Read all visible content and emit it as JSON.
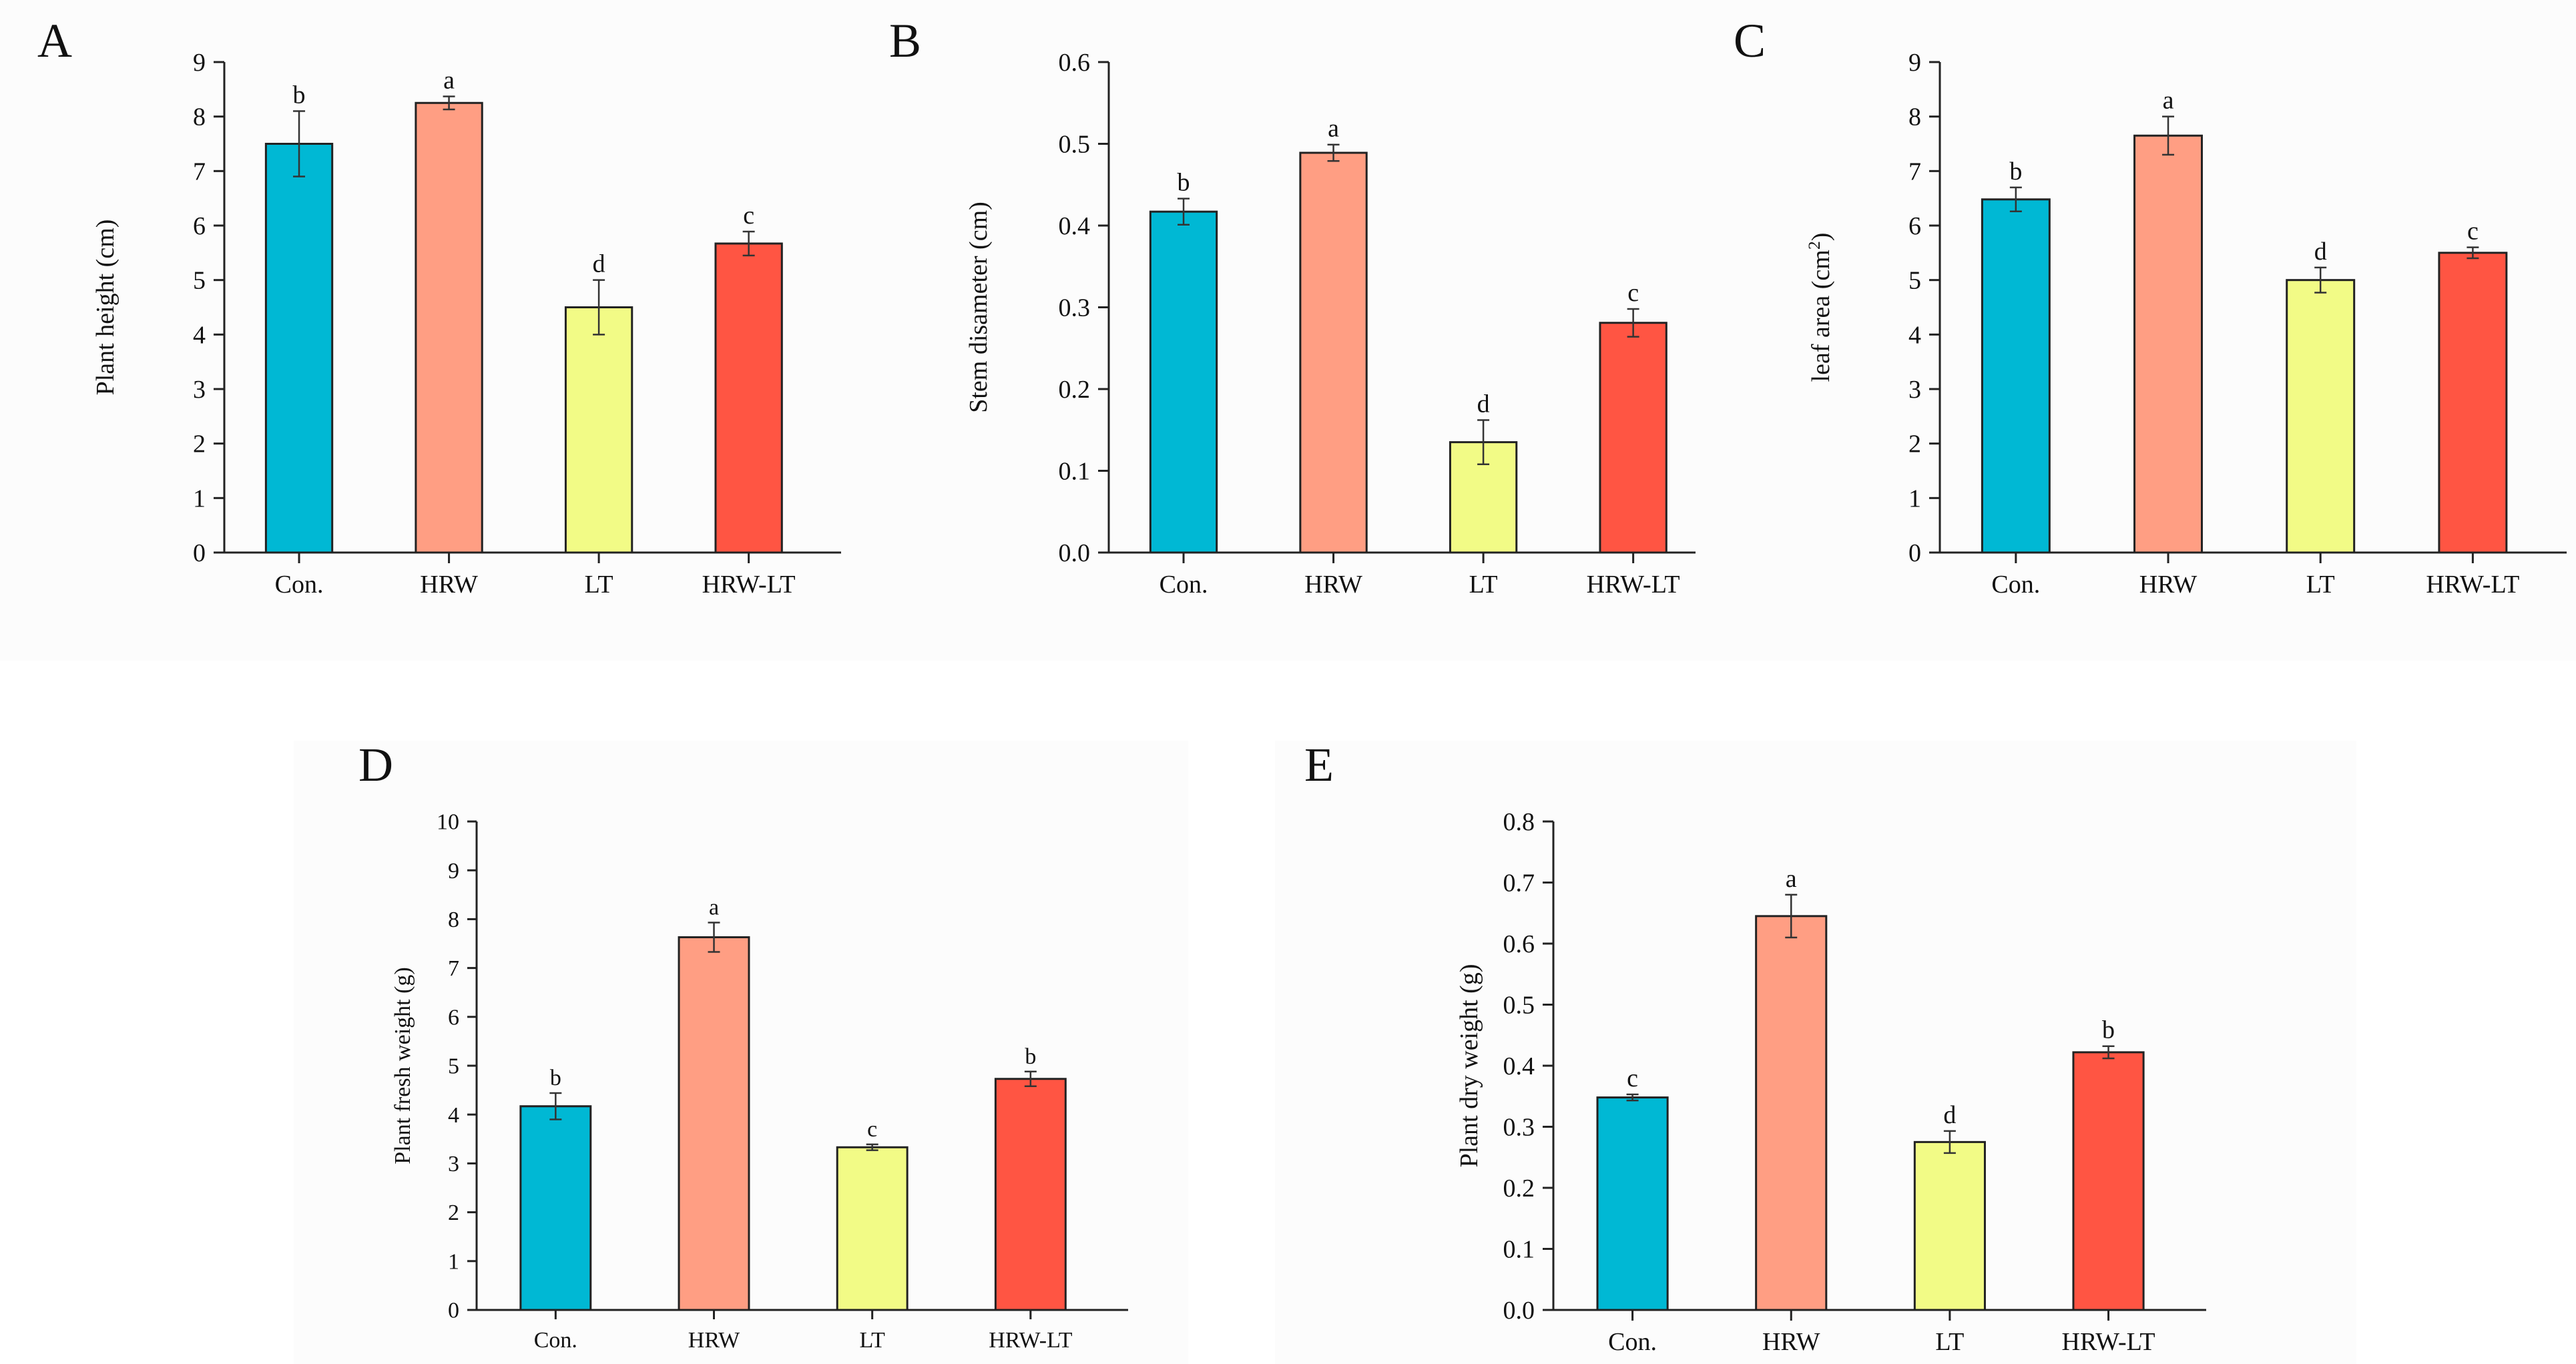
{
  "colors": {
    "Con.": "#00b8d4",
    "HRW": "#ff9e83",
    "LT": "#f2fb86",
    "HRW-LT": "#ff5543",
    "axis": "#222222",
    "bar_stroke": "#222222"
  },
  "chart_data": [
    {
      "panel": "A",
      "type": "bar",
      "ylabel": "Plant height (cm)",
      "ylabel_sup": "",
      "ylabel_suffix": "",
      "ylim": [
        0,
        9
      ],
      "yticks": [
        "0",
        "1",
        "2",
        "3",
        "4",
        "5",
        "6",
        "7",
        "8",
        "9"
      ],
      "categories": [
        "Con.",
        "HRW",
        "LT",
        "HRW-LT"
      ],
      "values": [
        7.5,
        8.25,
        4.5,
        5.67
      ],
      "errors": [
        0.6,
        0.12,
        0.5,
        0.22
      ],
      "letters": [
        "b",
        "a",
        "d",
        "c"
      ],
      "grid": false
    },
    {
      "panel": "B",
      "type": "bar",
      "ylabel": "Stem disameter (cm)",
      "ylabel_sup": "",
      "ylabel_suffix": "",
      "ylim": [
        0,
        0.6
      ],
      "yticks": [
        "0.0",
        "0.1",
        "0.2",
        "0.3",
        "0.4",
        "0.5",
        "0.6"
      ],
      "categories": [
        "Con.",
        "HRW",
        "LT",
        "HRW-LT"
      ],
      "values": [
        0.417,
        0.489,
        0.135,
        0.281
      ],
      "errors": [
        0.016,
        0.01,
        0.027,
        0.017
      ],
      "letters": [
        "b",
        "a",
        "d",
        "c"
      ],
      "grid": false
    },
    {
      "panel": "C",
      "type": "bar",
      "ylabel": "leaf area (cm",
      "ylabel_sup": "2",
      "ylabel_suffix": ")",
      "ylim": [
        0,
        9
      ],
      "yticks": [
        "0",
        "1",
        "2",
        "3",
        "4",
        "5",
        "6",
        "7",
        "8",
        "9"
      ],
      "categories": [
        "Con.",
        "HRW",
        "LT",
        "HRW-LT"
      ],
      "values": [
        6.48,
        7.65,
        5.0,
        5.5
      ],
      "errors": [
        0.22,
        0.35,
        0.23,
        0.1
      ],
      "letters": [
        "b",
        "a",
        "d",
        "c"
      ],
      "grid": false
    },
    {
      "panel": "D",
      "type": "bar",
      "ylabel": "Plant fresh weight (g)",
      "ylabel_sup": "",
      "ylabel_suffix": "",
      "ylim": [
        0,
        10
      ],
      "yticks": [
        "0",
        "1",
        "2",
        "3",
        "4",
        "5",
        "6",
        "7",
        "8",
        "9",
        "10"
      ],
      "categories": [
        "Con.",
        "HRW",
        "LT",
        "HRW-LT"
      ],
      "values": [
        4.17,
        7.63,
        3.33,
        4.73
      ],
      "errors": [
        0.27,
        0.3,
        0.06,
        0.15
      ],
      "letters": [
        "b",
        "a",
        "c",
        "b"
      ],
      "grid": false
    },
    {
      "panel": "E",
      "type": "bar",
      "ylabel": "Plant dry weight (g)",
      "ylabel_sup": "",
      "ylabel_suffix": "",
      "ylim": [
        0,
        0.8
      ],
      "yticks": [
        "0.0",
        "0.1",
        "0.2",
        "0.3",
        "0.4",
        "0.5",
        "0.6",
        "0.7",
        "0.8"
      ],
      "categories": [
        "Con.",
        "HRW",
        "LT",
        "HRW-LT"
      ],
      "values": [
        0.348,
        0.645,
        0.275,
        0.422
      ],
      "errors": [
        0.005,
        0.035,
        0.018,
        0.01
      ],
      "letters": [
        "c",
        "a",
        "d",
        "b"
      ],
      "grid": false
    }
  ]
}
